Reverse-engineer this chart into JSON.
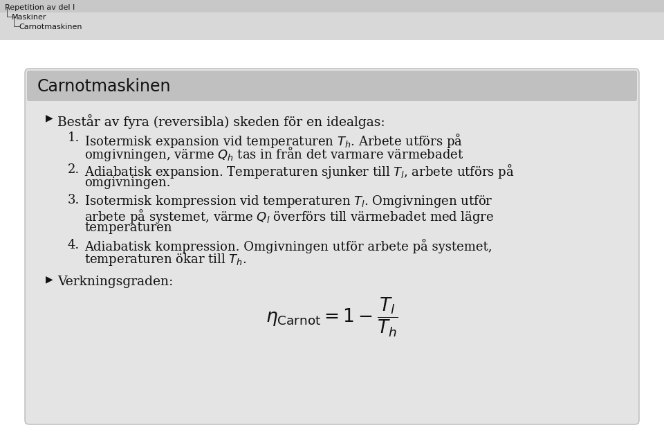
{
  "bg_color": "#ffffff",
  "header_bg_top": "#c8c8c8",
  "header_bg_bot": "#d8d8d8",
  "header_breadcrumb": [
    "Repetition av del I",
    "Maskiner",
    "Carnotmaskinen"
  ],
  "slide_bg": "#e4e4e4",
  "slide_title_bg": "#c0c0c0",
  "slide_title": "Carnotmaskinen",
  "bullet1": "Består av fyra (reversibla) skeden för en idealgas:",
  "item1_line1": "Isotermisk expansion vid temperaturen $T_h$. Arbete utförs på",
  "item1_line2": "omgivningen, värme $Q_h$ tas in från det varmare värmebadet",
  "item2_line1": "Adiabatisk expansion. Temperaturen sjunker till $T_l$, arbete utförs på",
  "item2_line2": "omgivningen.",
  "item3_line1": "Isotermisk kompression vid temperaturen $T_l$. Omgivningen utför",
  "item3_line2": "arbete på systemet, värme $Q_l$ överförs till värmebadet med lägre",
  "item3_line3": "temperaturen",
  "item4_line1": "Adiabatisk kompression. Omgivningen utför arbete på systemet,",
  "item4_line2": "temperaturen ökar till $T_h$.",
  "bullet2": "Verkningsgraden:",
  "header_font_size": 8,
  "title_font_size": 17,
  "bullet_font_size": 13.5,
  "item_font_size": 13,
  "formula_font_size": 15
}
